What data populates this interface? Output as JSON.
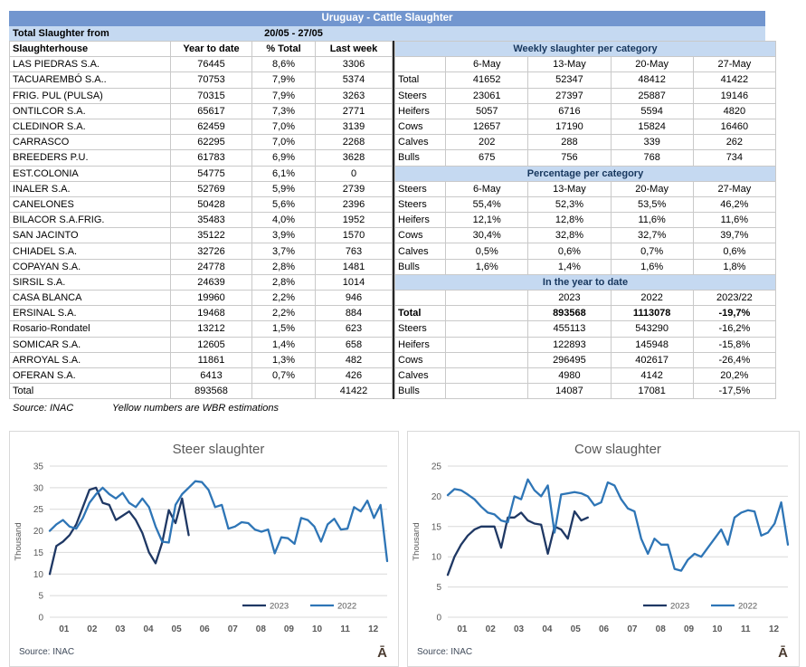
{
  "app": {
    "title": "Uruguay - Cattle Slaughter"
  },
  "colors": {
    "title_bar": "#7296CF",
    "light_blue_band": "#C5D9F1",
    "band_text": "#17375E",
    "line_2023": "#1F3864",
    "line_2022": "#2E75B6",
    "divider": "#262626",
    "grid": "#D9D9D9",
    "axis_text": "#595959",
    "watermark_color": "#4A3B30"
  },
  "period": {
    "label": "Total Slaughter from",
    "range": "20/05 - 27/05"
  },
  "slaughterhouse_table": {
    "headers": [
      "Slaughterhouse",
      "Year to date",
      "% Total",
      "Last week"
    ],
    "rows": [
      [
        "LAS PIEDRAS S.A.",
        "76445",
        "8,6%",
        "3306"
      ],
      [
        "TACUAREMBÓ S.A..",
        "70753",
        "7,9%",
        "5374"
      ],
      [
        "FRIG. PUL (PULSA)",
        "70315",
        "7,9%",
        "3263"
      ],
      [
        "ONTILCOR S.A.",
        "65617",
        "7,3%",
        "2771"
      ],
      [
        "CLEDINOR S.A.",
        "62459",
        "7,0%",
        "3139"
      ],
      [
        "CARRASCO",
        "62295",
        "7,0%",
        "2268"
      ],
      [
        "BREEDERS P.U.",
        "61783",
        "6,9%",
        "3628"
      ],
      [
        "EST.COLONIA",
        "54775",
        "6,1%",
        "0"
      ],
      [
        "INALER S.A.",
        "52769",
        "5,9%",
        "2739"
      ],
      [
        "CANELONES",
        "50428",
        "5,6%",
        "2396"
      ],
      [
        "BILACOR S.A.FRIG.",
        "35483",
        "4,0%",
        "1952"
      ],
      [
        "SAN JACINTO",
        "35122",
        "3,9%",
        "1570"
      ],
      [
        "CHIADEL S.A.",
        "32726",
        "3,7%",
        "763"
      ],
      [
        "COPAYAN S.A.",
        "24778",
        "2,8%",
        "1481"
      ],
      [
        "SIRSIL S.A.",
        "24639",
        "2,8%",
        "1014"
      ],
      [
        "CASA BLANCA",
        "19960",
        "2,2%",
        "946"
      ],
      [
        "ERSINAL S.A.",
        "19468",
        "2,2%",
        "884"
      ],
      [
        "Rosario-Rondatel",
        "13212",
        "1,5%",
        "623"
      ],
      [
        "SOMICAR S.A.",
        "12605",
        "1,4%",
        "658"
      ],
      [
        "ARROYAL S.A.",
        "11861",
        "1,3%",
        "482"
      ],
      [
        "OFERAN S.A.",
        "6413",
        "0,7%",
        "426"
      ],
      [
        "Total",
        "893568",
        "",
        "41422"
      ]
    ]
  },
  "category_tables": {
    "weekly": {
      "title": "Weekly slaughter per category",
      "columns": [
        "",
        "6-May",
        "13-May",
        "20-May",
        "27-May"
      ],
      "rows": [
        [
          "Total",
          "41652",
          "52347",
          "48412",
          "41422"
        ],
        [
          "Steers",
          "23061",
          "27397",
          "25887",
          "19146"
        ],
        [
          "Heifers",
          "5057",
          "6716",
          "5594",
          "4820"
        ],
        [
          "Cows",
          "12657",
          "17190",
          "15824",
          "16460"
        ],
        [
          "Calves",
          "202",
          "288",
          "339",
          "262"
        ],
        [
          "Bulls",
          "675",
          "756",
          "768",
          "734"
        ]
      ],
      "bold_rows": []
    },
    "percentage": {
      "title": "Percentage per category",
      "columns": [
        "Steers",
        "6-May",
        "13-May",
        "20-May",
        "27-May"
      ],
      "rows": [
        [
          "Steers",
          "55,4%",
          "52,3%",
          "53,5%",
          "46,2%"
        ],
        [
          "Heifers",
          "12,1%",
          "12,8%",
          "11,6%",
          "11,6%"
        ],
        [
          "Cows",
          "30,4%",
          "32,8%",
          "32,7%",
          "39,7%"
        ],
        [
          "Calves",
          "0,5%",
          "0,6%",
          "0,7%",
          "0,6%"
        ],
        [
          "Bulls",
          "1,6%",
          "1,4%",
          "1,6%",
          "1,8%"
        ]
      ],
      "bold_rows": []
    },
    "ytd": {
      "title": "In the year to date",
      "columns": [
        "",
        "",
        "2023",
        "2022",
        "2023/22"
      ],
      "rows": [
        [
          "Total",
          "",
          "893568",
          "1113078",
          "-19,7%"
        ],
        [
          "Steers",
          "",
          "455113",
          "543290",
          "-16,2%"
        ],
        [
          "Heifers",
          "",
          "122893",
          "145948",
          "-15,8%"
        ],
        [
          "Cows",
          "",
          "296495",
          "402617",
          "-26,4%"
        ],
        [
          "Calves",
          "",
          "4980",
          "4142",
          "20,2%"
        ],
        [
          "Bulls",
          "",
          "14087",
          "17081",
          "-17,5%"
        ]
      ],
      "bold_rows": [
        0
      ]
    }
  },
  "footnote": {
    "source": "Source: INAC",
    "note": "Yellow numbers are WBR estimations"
  },
  "chart_data": [
    {
      "type": "line",
      "title": "Steer slaughter",
      "ylabel": "Thousand",
      "ylim": [
        0,
        35
      ],
      "yticks": [
        0,
        5,
        10,
        15,
        20,
        25,
        30,
        35
      ],
      "xtick_labels": [
        "01",
        "02",
        "03",
        "04",
        "05",
        "06",
        "07",
        "08",
        "09",
        "10",
        "11",
        "12"
      ],
      "x_unit": "week-of-year",
      "weeks": 52,
      "grid": true,
      "legend_position": "inside-bottom-right",
      "source": "Source: INAC",
      "watermark": "Ā",
      "series": [
        {
          "name": "2023",
          "color": "#1F3864",
          "values": [
            10,
            16.5,
            17.5,
            19,
            21.5,
            25.5,
            29.5,
            30,
            26.5,
            26,
            22.5,
            23.5,
            24.5,
            22.5,
            19.5,
            15,
            12.5,
            17.3,
            24.8,
            21.8,
            27.5,
            19
          ]
        },
        {
          "name": "2022",
          "color": "#2E75B6",
          "values": [
            20,
            21.5,
            22.5,
            21,
            20.5,
            23,
            26.5,
            28.5,
            30,
            28.5,
            27.5,
            28.8,
            26.5,
            25.5,
            27.5,
            25.5,
            21,
            17.5,
            17.3,
            26,
            28.5,
            30,
            31.5,
            31.3,
            29.5,
            25.5,
            26,
            20.5,
            21,
            22,
            21.8,
            20.3,
            19.8,
            20.3,
            14.8,
            18.5,
            18.3,
            17,
            23,
            22.5,
            21,
            17.5,
            21.5,
            22.8,
            20.3,
            20.5,
            25.5,
            24.5,
            27,
            23,
            26,
            13
          ]
        }
      ]
    },
    {
      "type": "line",
      "title": "Cow slaughter",
      "ylabel": "Thousand",
      "ylim": [
        0,
        25
      ],
      "yticks": [
        0,
        5,
        10,
        15,
        20,
        25
      ],
      "xtick_labels": [
        "01",
        "02",
        "03",
        "04",
        "05",
        "06",
        "07",
        "08",
        "09",
        "10",
        "11",
        "12"
      ],
      "x_unit": "week-of-year",
      "weeks": 52,
      "grid": true,
      "legend_position": "inside-bottom-right",
      "source": "Source: INAC",
      "watermark": "Ā",
      "series": [
        {
          "name": "2023",
          "color": "#1F3864",
          "values": [
            7,
            10,
            12,
            13.5,
            14.5,
            15,
            15,
            15,
            11.5,
            16.5,
            16.5,
            17.3,
            16,
            15.5,
            15.3,
            10.5,
            15,
            14.5,
            13,
            17.5,
            16,
            16.5
          ]
        },
        {
          "name": "2022",
          "color": "#2E75B6",
          "values": [
            20.2,
            21.2,
            21,
            20.3,
            19.5,
            18.3,
            17.3,
            17,
            16,
            15.7,
            20,
            19.5,
            22.8,
            21,
            20,
            21.8,
            14,
            20.3,
            20.5,
            20.7,
            20.5,
            20,
            18.5,
            19,
            22.3,
            21.8,
            19.5,
            18,
            17.5,
            13,
            10.5,
            13,
            12,
            12,
            8,
            7.7,
            9.5,
            10.5,
            10,
            11.5,
            13,
            14.5,
            12,
            16.5,
            17.3,
            17.7,
            17.5,
            13.5,
            14,
            15.5,
            19,
            12
          ]
        }
      ]
    }
  ]
}
